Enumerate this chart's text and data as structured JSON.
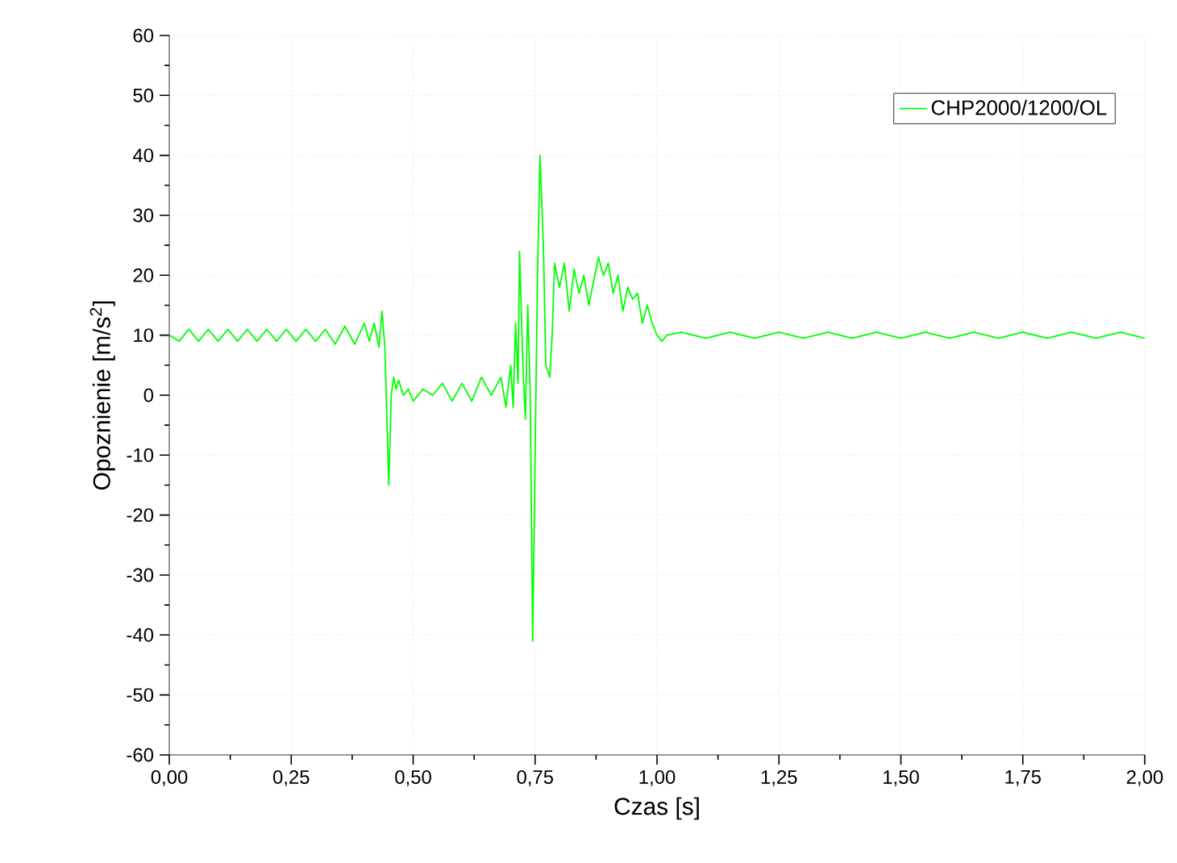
{
  "chart_data": {
    "type": "line",
    "xlabel": "Czas [s]",
    "ylabel": "Opoznienie [m/s$^{2}$]",
    "xlim": [
      0,
      2
    ],
    "ylim": [
      -60,
      60
    ],
    "xticks": [
      {
        "value": 0,
        "label": "0,00"
      },
      {
        "value": 0.25,
        "label": "0,25"
      },
      {
        "value": 0.5,
        "label": "0,50"
      },
      {
        "value": 0.75,
        "label": "0,75"
      },
      {
        "value": 1,
        "label": "1,00"
      },
      {
        "value": 1.25,
        "label": "1,25"
      },
      {
        "value": 1.5,
        "label": "1,50"
      },
      {
        "value": 1.75,
        "label": "1,75"
      },
      {
        "value": 2,
        "label": "2,00"
      }
    ],
    "yticks": [
      -60,
      -50,
      -40,
      -30,
      -20,
      -10,
      0,
      10,
      20,
      30,
      40,
      50,
      60
    ],
    "grid": true,
    "legend": "top right",
    "marker": "none",
    "line_style": "solid",
    "series": [
      {
        "name": "CHP2000/1200/OL",
        "color": "#00ff00",
        "x": [
          0,
          0.02,
          0.04,
          0.06,
          0.08,
          0.1,
          0.12,
          0.14,
          0.16,
          0.18,
          0.2,
          0.22,
          0.24,
          0.26,
          0.28,
          0.3,
          0.32,
          0.34,
          0.36,
          0.38,
          0.4,
          0.41,
          0.42,
          0.43,
          0.436,
          0.442,
          0.45,
          0.455,
          0.46,
          0.465,
          0.47,
          0.48,
          0.49,
          0.5,
          0.52,
          0.54,
          0.56,
          0.58,
          0.6,
          0.62,
          0.64,
          0.66,
          0.68,
          0.69,
          0.7,
          0.705,
          0.71,
          0.715,
          0.718,
          0.725,
          0.73,
          0.735,
          0.74,
          0.745,
          0.75,
          0.755,
          0.76,
          0.767,
          0.772,
          0.78,
          0.785,
          0.79,
          0.8,
          0.81,
          0.82,
          0.83,
          0.84,
          0.85,
          0.86,
          0.87,
          0.88,
          0.89,
          0.9,
          0.91,
          0.92,
          0.93,
          0.94,
          0.95,
          0.96,
          0.97,
          0.98,
          0.99,
          1.0,
          1.01,
          1.02,
          1.05,
          1.1,
          1.15,
          1.2,
          1.25,
          1.3,
          1.35,
          1.4,
          1.45,
          1.5,
          1.55,
          1.6,
          1.65,
          1.7,
          1.75,
          1.8,
          1.85,
          1.9,
          1.95,
          2.0
        ],
        "values": [
          10,
          9,
          11,
          9,
          11,
          9,
          11,
          9,
          11,
          9,
          11,
          9,
          11,
          9,
          11,
          9,
          11,
          8.5,
          11.5,
          8.5,
          12,
          9,
          12,
          8,
          14,
          8,
          -15,
          0,
          3,
          1,
          2.5,
          0,
          1,
          -1,
          1,
          0,
          2,
          -1,
          2,
          -1,
          3,
          0,
          3,
          -2,
          5,
          -2,
          12,
          2,
          24,
          5,
          -4,
          15,
          0,
          -41,
          -10,
          20,
          40,
          25,
          5,
          3,
          10,
          22,
          18,
          22,
          14,
          21,
          17,
          20,
          15,
          19,
          23,
          20,
          22,
          17,
          20,
          14,
          18,
          16,
          17,
          12,
          15,
          12,
          10,
          9,
          10,
          10.5,
          9.5,
          10.5,
          9.5,
          10.5,
          9.5,
          10.5,
          9.5,
          10.5,
          9.5,
          10.5,
          9.5,
          10.5,
          9.5,
          10.5,
          9.5,
          10.5,
          9.5,
          10.5,
          9.5
        ]
      }
    ]
  }
}
